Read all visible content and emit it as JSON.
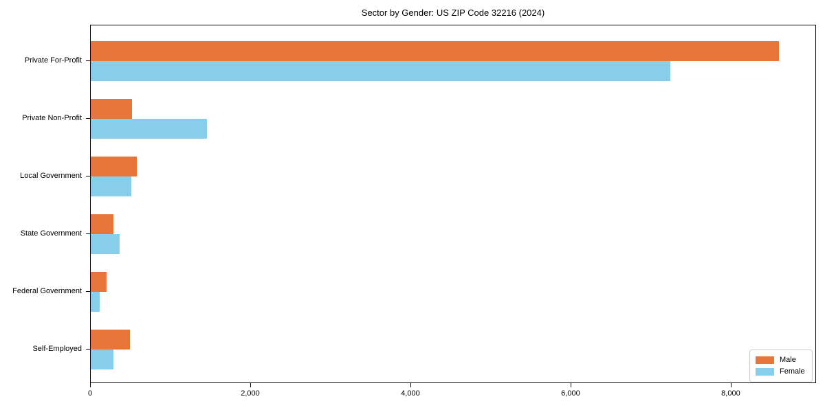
{
  "title": "Sector by Gender: US ZIP Code 32216 (2024)",
  "chart_data": {
    "type": "bar",
    "orientation": "horizontal",
    "title": "Sector by Gender: US ZIP Code 32216 (2024)",
    "xlabel": "",
    "ylabel": "",
    "categories": [
      "Private For-Profit",
      "Private Non-Profit",
      "Local Government",
      "State Government",
      "Federal Government",
      "Self-Employed"
    ],
    "series": [
      {
        "name": "Male",
        "color": "#e8763b",
        "values": [
          8610,
          520,
          580,
          280,
          200,
          490
        ]
      },
      {
        "name": "Female",
        "color": "#87ceeb",
        "values": [
          7250,
          1450,
          510,
          360,
          110,
          285
        ]
      }
    ],
    "xlim": [
      0,
      9065
    ],
    "x_ticks": [
      0,
      2000,
      4000,
      6000,
      8000
    ],
    "x_tick_labels": [
      "0",
      "2,000",
      "4,000",
      "6,000",
      "8,000"
    ],
    "grid": false,
    "legend_position": "lower right",
    "legend_labels": [
      "Male",
      "Female"
    ]
  }
}
